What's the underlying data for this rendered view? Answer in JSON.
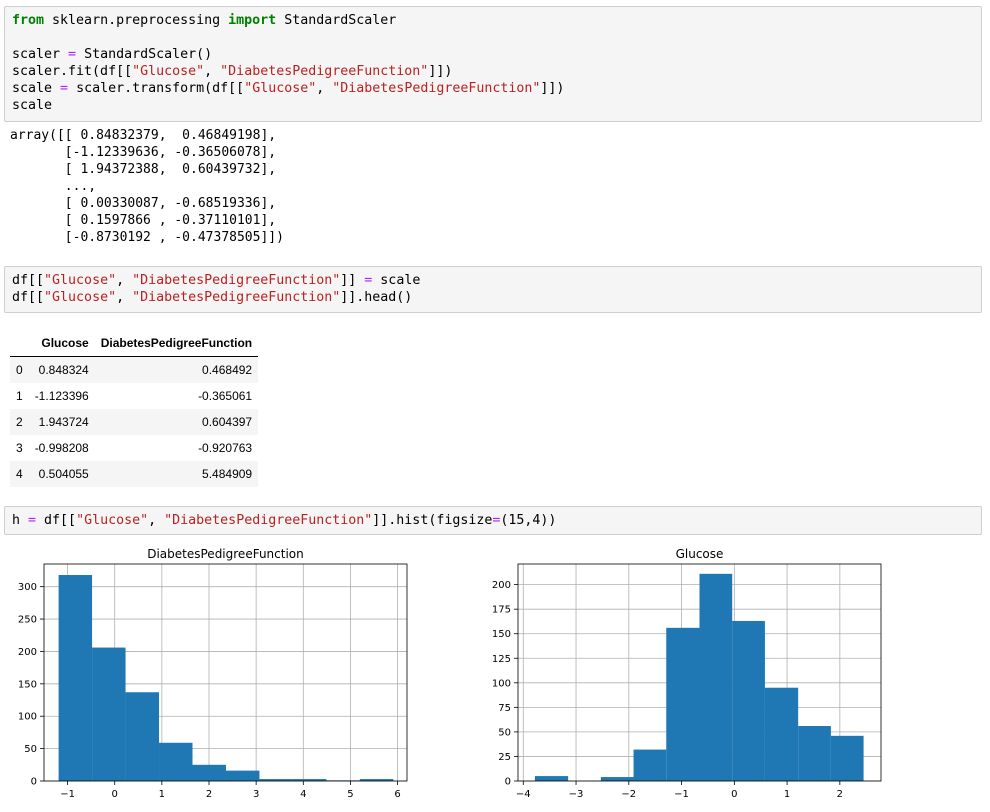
{
  "cells": {
    "cell1": {
      "line1": {
        "kw1": "from",
        "mod": " sklearn.preprocessing ",
        "kw2": "import",
        "name": " StandardScaler"
      },
      "line3": {
        "a": "scaler ",
        "eq": "=",
        "b": " StandardScaler()"
      },
      "line4": {
        "a": "scaler.fit(df[[",
        "s1": "\"Glucose\"",
        "c": ", ",
        "s2": "\"DiabetesPedigreeFunction\"",
        "d": "]])"
      },
      "line5": {
        "a": "scale ",
        "eq": "=",
        "b": " scaler.transform(df[[",
        "s1": "\"Glucose\"",
        "c": ", ",
        "s2": "\"DiabetesPedigreeFunction\"",
        "d": "]])"
      },
      "line6": "scale"
    },
    "output1": [
      "array([[ 0.84832379,  0.46849198],",
      "       [-1.12339636, -0.36506078],",
      "       [ 1.94372388,  0.60439732],",
      "       ...,",
      "       [ 0.00330087, -0.68519336],",
      "       [ 0.1597866 , -0.37110101],",
      "       [-0.8730192 , -0.47378505]])"
    ],
    "cell2": {
      "line1": {
        "a": "df[[",
        "s1": "\"Glucose\"",
        "c": ", ",
        "s2": "\"DiabetesPedigreeFunction\"",
        "d": "]] ",
        "eq": "=",
        "e": " scale"
      },
      "line2": {
        "a": "df[[",
        "s1": "\"Glucose\"",
        "c": ", ",
        "s2": "\"DiabetesPedigreeFunction\"",
        "d": "]].head()"
      }
    },
    "cell3": {
      "a": "h ",
      "eq": "=",
      "b": " df[[",
      "s1": "\"Glucose\"",
      "c": ", ",
      "s2": "\"DiabetesPedigreeFunction\"",
      "d": "]].hist(figsize",
      "eq2": "=",
      "e": "(15,4))"
    }
  },
  "dataframe": {
    "columns": [
      "",
      "Glucose",
      "DiabetesPedigreeFunction"
    ],
    "rows": [
      [
        "0",
        "0.848324",
        "0.468492"
      ],
      [
        "1",
        "-1.123396",
        "-0.365061"
      ],
      [
        "2",
        "1.943724",
        "0.604397"
      ],
      [
        "3",
        "-0.998208",
        "-0.920763"
      ],
      [
        "4",
        "0.504055",
        "5.484909"
      ]
    ]
  },
  "colors": {
    "bar": "#1f77b4",
    "grid": "#b0b0b0",
    "keyword": "#008000",
    "string": "#ba2121",
    "operator": "#aa22ff"
  },
  "chart_data": [
    {
      "type": "bar",
      "title": "DiabetesPedigreeFunction",
      "bins": [
        [
          -1.19,
          -0.48
        ],
        [
          -0.48,
          0.23
        ],
        [
          0.23,
          0.94
        ],
        [
          0.94,
          1.65
        ],
        [
          1.65,
          2.36
        ],
        [
          2.36,
          3.07
        ],
        [
          3.07,
          3.78
        ],
        [
          3.78,
          4.49
        ],
        [
          4.49,
          5.2
        ],
        [
          5.2,
          5.91
        ]
      ],
      "counts": [
        318,
        206,
        137,
        59,
        25,
        16,
        3,
        3,
        1,
        3
      ],
      "xlim": [
        -1.5,
        6.2
      ],
      "ylim": [
        0,
        335
      ],
      "xticks": [
        -1,
        0,
        1,
        2,
        3,
        4,
        5,
        6
      ],
      "yticks": [
        0,
        50,
        100,
        150,
        200,
        250,
        300
      ],
      "grid": true
    },
    {
      "type": "bar",
      "title": "Glucose",
      "bins": [
        [
          -3.78,
          -3.15
        ],
        [
          -3.15,
          -2.53
        ],
        [
          -2.53,
          -1.91
        ],
        [
          -1.91,
          -1.29
        ],
        [
          -1.29,
          -0.66
        ],
        [
          -0.66,
          -0.04
        ],
        [
          -0.04,
          0.58
        ],
        [
          0.58,
          1.21
        ],
        [
          1.21,
          1.83
        ],
        [
          1.83,
          2.45
        ]
      ],
      "counts": [
        5,
        0,
        4,
        32,
        156,
        211,
        163,
        95,
        56,
        46
      ],
      "xlim": [
        -4.1,
        2.78
      ],
      "ylim": [
        0,
        221
      ],
      "xticks": [
        -4,
        -3,
        -2,
        -1,
        0,
        1,
        2
      ],
      "yticks": [
        0,
        25,
        50,
        75,
        100,
        125,
        150,
        175,
        200
      ],
      "grid": true
    }
  ]
}
